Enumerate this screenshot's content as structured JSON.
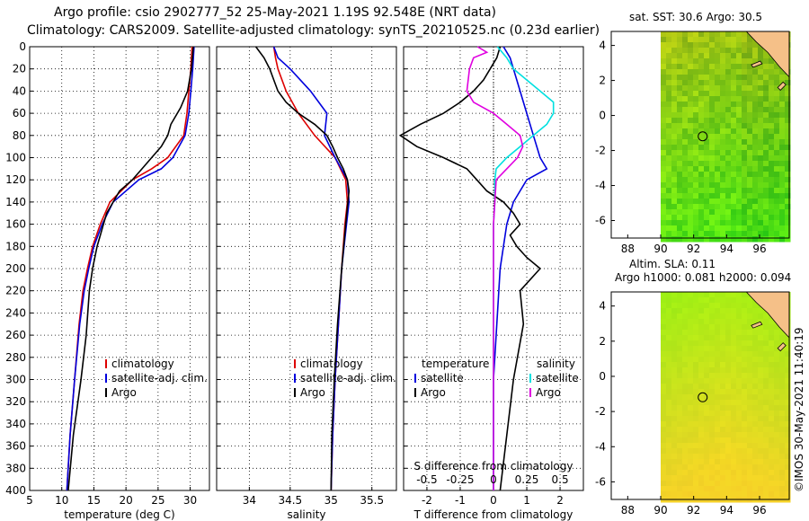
{
  "title_line1": "Argo profile: csio 2902777_52 25-May-2021 1.19S 92.548E (NRT data)",
  "title_line2": "Climatology: CARS2009. Satellite-adjusted climatology: synTS_20210525.nc (0.23d earlier)",
  "map1_title": "sat. SST: 30.6 Argo: 30.5",
  "map2_title1": "Altim. SLA: 0.11",
  "map2_title2": "Argo h1000: 0.081 h2000: 0.094",
  "credit": "©IMOS 30-May-2021 11:40:19",
  "colors": {
    "climatology": "#dd0000",
    "satellite": "#0000dd",
    "argo": "#000000",
    "sal_sat": "#00e0e0",
    "sal_diff": "#e000e0"
  },
  "chart_data": [
    {
      "type": "line",
      "title": "",
      "xlabel": "temperature (deg C)",
      "ylabel": "",
      "xlim": [
        5,
        33
      ],
      "ylim": [
        400,
        0
      ],
      "xticks": [
        "5",
        "10",
        "15",
        "20",
        "25",
        "30"
      ],
      "yticks": [
        "0",
        "20",
        "40",
        "60",
        "80",
        "100",
        "120",
        "140",
        "160",
        "180",
        "200",
        "220",
        "240",
        "260",
        "280",
        "300",
        "320",
        "340",
        "360",
        "380",
        "400"
      ],
      "legend": [
        "climatology",
        "satellite-adj. clim.",
        "Argo"
      ],
      "series": [
        {
          "name": "climatology",
          "depth": [
            0,
            20,
            40,
            60,
            80,
            100,
            110,
            120,
            140,
            160,
            180,
            200,
            220,
            250,
            300,
            350,
            400
          ],
          "values": [
            30.3,
            30.1,
            29.8,
            29.5,
            29.0,
            26.5,
            24.0,
            21.0,
            17.5,
            16.0,
            14.8,
            14.0,
            13.3,
            12.7,
            12.0,
            11.3,
            10.8
          ]
        },
        {
          "name": "satellite-adj. clim.",
          "depth": [
            0,
            20,
            40,
            60,
            80,
            100,
            110,
            120,
            140,
            160,
            180,
            200,
            220,
            250,
            300,
            350,
            400
          ],
          "values": [
            30.6,
            30.4,
            30.1,
            29.8,
            29.2,
            27.3,
            25.5,
            22.0,
            18.0,
            16.3,
            15.0,
            14.2,
            13.5,
            12.8,
            12.0,
            11.3,
            10.8
          ]
        },
        {
          "name": "Argo",
          "depth": [
            0,
            20,
            40,
            55,
            70,
            80,
            90,
            100,
            110,
            120,
            130,
            140,
            150,
            160,
            170,
            180,
            200,
            220,
            260,
            300,
            350,
            400
          ],
          "values": [
            30.5,
            30.2,
            29.6,
            28.5,
            27.0,
            26.5,
            25.5,
            24.0,
            22.5,
            21.0,
            19.0,
            18.0,
            17.0,
            16.5,
            16.0,
            15.5,
            14.8,
            14.3,
            13.8,
            13.0,
            11.8,
            11.0
          ]
        }
      ]
    },
    {
      "type": "line",
      "title": "",
      "xlabel": "salinity",
      "ylabel": "",
      "xlim": [
        33.6,
        35.8
      ],
      "ylim": [
        400,
        0
      ],
      "xticks": [
        "34",
        "34.5",
        "35",
        "35.5"
      ],
      "legend": [
        "climatology",
        "satellite-adj. clim.",
        "Argo"
      ],
      "series": [
        {
          "name": "climatology",
          "depth": [
            0,
            10,
            20,
            40,
            60,
            80,
            100,
            120,
            140,
            160,
            200,
            250,
            300,
            350,
            400
          ],
          "values": [
            34.3,
            34.32,
            34.35,
            34.45,
            34.6,
            34.8,
            35.05,
            35.18,
            35.2,
            35.17,
            35.13,
            35.09,
            35.05,
            35.02,
            35.0
          ]
        },
        {
          "name": "satellite-adj. clim.",
          "depth": [
            0,
            10,
            20,
            40,
            60,
            80,
            100,
            120,
            140,
            160,
            200,
            250,
            300,
            350,
            400
          ],
          "values": [
            34.3,
            34.35,
            34.5,
            34.75,
            34.95,
            34.92,
            35.05,
            35.2,
            35.22,
            35.19,
            35.13,
            35.09,
            35.05,
            35.02,
            35.0
          ]
        },
        {
          "name": "Argo",
          "depth": [
            0,
            10,
            20,
            30,
            40,
            50,
            60,
            70,
            80,
            90,
            100,
            110,
            120,
            130,
            160,
            200,
            250,
            300,
            350,
            400
          ],
          "values": [
            34.08,
            34.18,
            34.25,
            34.3,
            34.35,
            34.45,
            34.6,
            34.8,
            34.95,
            35.02,
            35.08,
            35.15,
            35.2,
            35.22,
            35.18,
            35.13,
            35.08,
            35.04,
            35.01,
            35.0
          ]
        }
      ]
    },
    {
      "type": "line",
      "title": "",
      "xlabel": "T difference from climatology",
      "xlabel_top": "S difference from climatology",
      "ylabel": "",
      "xlim": [
        -2.7,
        2.7
      ],
      "ylim": [
        400,
        0
      ],
      "xticks": [
        "-2",
        "-1",
        "0",
        "1",
        "2"
      ],
      "xticks_top": [
        "-0.5",
        "-0.25",
        "0",
        "0.25",
        "0.5"
      ],
      "legend_temperature": [
        "temperature",
        "satellite",
        "Argo"
      ],
      "legend_salinity": [
        "salinity",
        "satellite",
        "Argo"
      ],
      "series": [
        {
          "name": "T satellite",
          "depth": [
            0,
            10,
            20,
            40,
            60,
            80,
            100,
            110,
            120,
            140,
            160,
            180,
            200,
            250,
            300,
            350,
            400
          ],
          "values": [
            0.3,
            0.5,
            0.6,
            0.8,
            1.0,
            1.2,
            1.4,
            1.6,
            1.0,
            0.6,
            0.4,
            0.3,
            0.2,
            0.1,
            0.0,
            0.0,
            0.0
          ]
        },
        {
          "name": "T Argo",
          "depth": [
            0,
            10,
            20,
            30,
            40,
            50,
            60,
            70,
            80,
            90,
            100,
            110,
            120,
            130,
            140,
            150,
            160,
            170,
            180,
            190,
            200,
            220,
            250,
            300,
            350,
            400
          ],
          "values": [
            0.2,
            0.1,
            -0.1,
            -0.3,
            -0.6,
            -1.0,
            -1.5,
            -2.2,
            -2.8,
            -2.3,
            -1.5,
            -0.8,
            -0.5,
            -0.2,
            0.3,
            0.6,
            0.8,
            0.5,
            0.7,
            1.0,
            1.4,
            0.8,
            0.9,
            0.6,
            0.4,
            0.2
          ]
        },
        {
          "name": "S satellite",
          "depth": [
            0,
            10,
            20,
            40,
            50,
            60,
            70,
            80,
            90,
            100,
            110,
            120,
            140,
            160,
            200,
            250,
            300,
            350,
            400
          ],
          "values": [
            0.03,
            0.1,
            0.15,
            0.35,
            0.45,
            0.45,
            0.4,
            0.3,
            0.2,
            0.1,
            0.02,
            0.01,
            0.01,
            0.0,
            0.0,
            0.0,
            0.0,
            0.0,
            0.0
          ]
        },
        {
          "name": "S Argo",
          "depth": [
            0,
            5,
            10,
            20,
            40,
            50,
            60,
            70,
            80,
            90,
            100,
            110,
            120,
            140,
            160,
            200,
            250,
            300,
            350,
            400
          ],
          "values": [
            -0.12,
            -0.05,
            -0.15,
            -0.18,
            -0.2,
            -0.15,
            0.0,
            0.1,
            0.2,
            0.22,
            0.18,
            0.1,
            0.02,
            0.01,
            0.0,
            0.0,
            0.0,
            0.0,
            0.0,
            0.0
          ]
        }
      ]
    },
    {
      "type": "heatmap",
      "title": "sat. SST: 30.6 Argo: 30.5",
      "xticks": [
        "88",
        "90",
        "92",
        "94",
        "96"
      ],
      "yticks": [
        "4",
        "2",
        "0",
        "-2",
        "-4",
        "-6"
      ],
      "xlim": [
        87,
        97.8
      ],
      "ylim": [
        -7,
        4.8
      ],
      "marker": {
        "lon": 92.548,
        "lat": -1.19
      }
    },
    {
      "type": "heatmap",
      "title": "Altim. SLA: 0.11",
      "xticks": [
        "88",
        "90",
        "92",
        "94",
        "96"
      ],
      "yticks": [
        "4",
        "2",
        "0",
        "-2",
        "-4",
        "-6"
      ],
      "xlim": [
        87,
        97.8
      ],
      "ylim": [
        -7,
        4.8
      ],
      "marker": {
        "lon": 92.548,
        "lat": -1.19
      }
    }
  ]
}
